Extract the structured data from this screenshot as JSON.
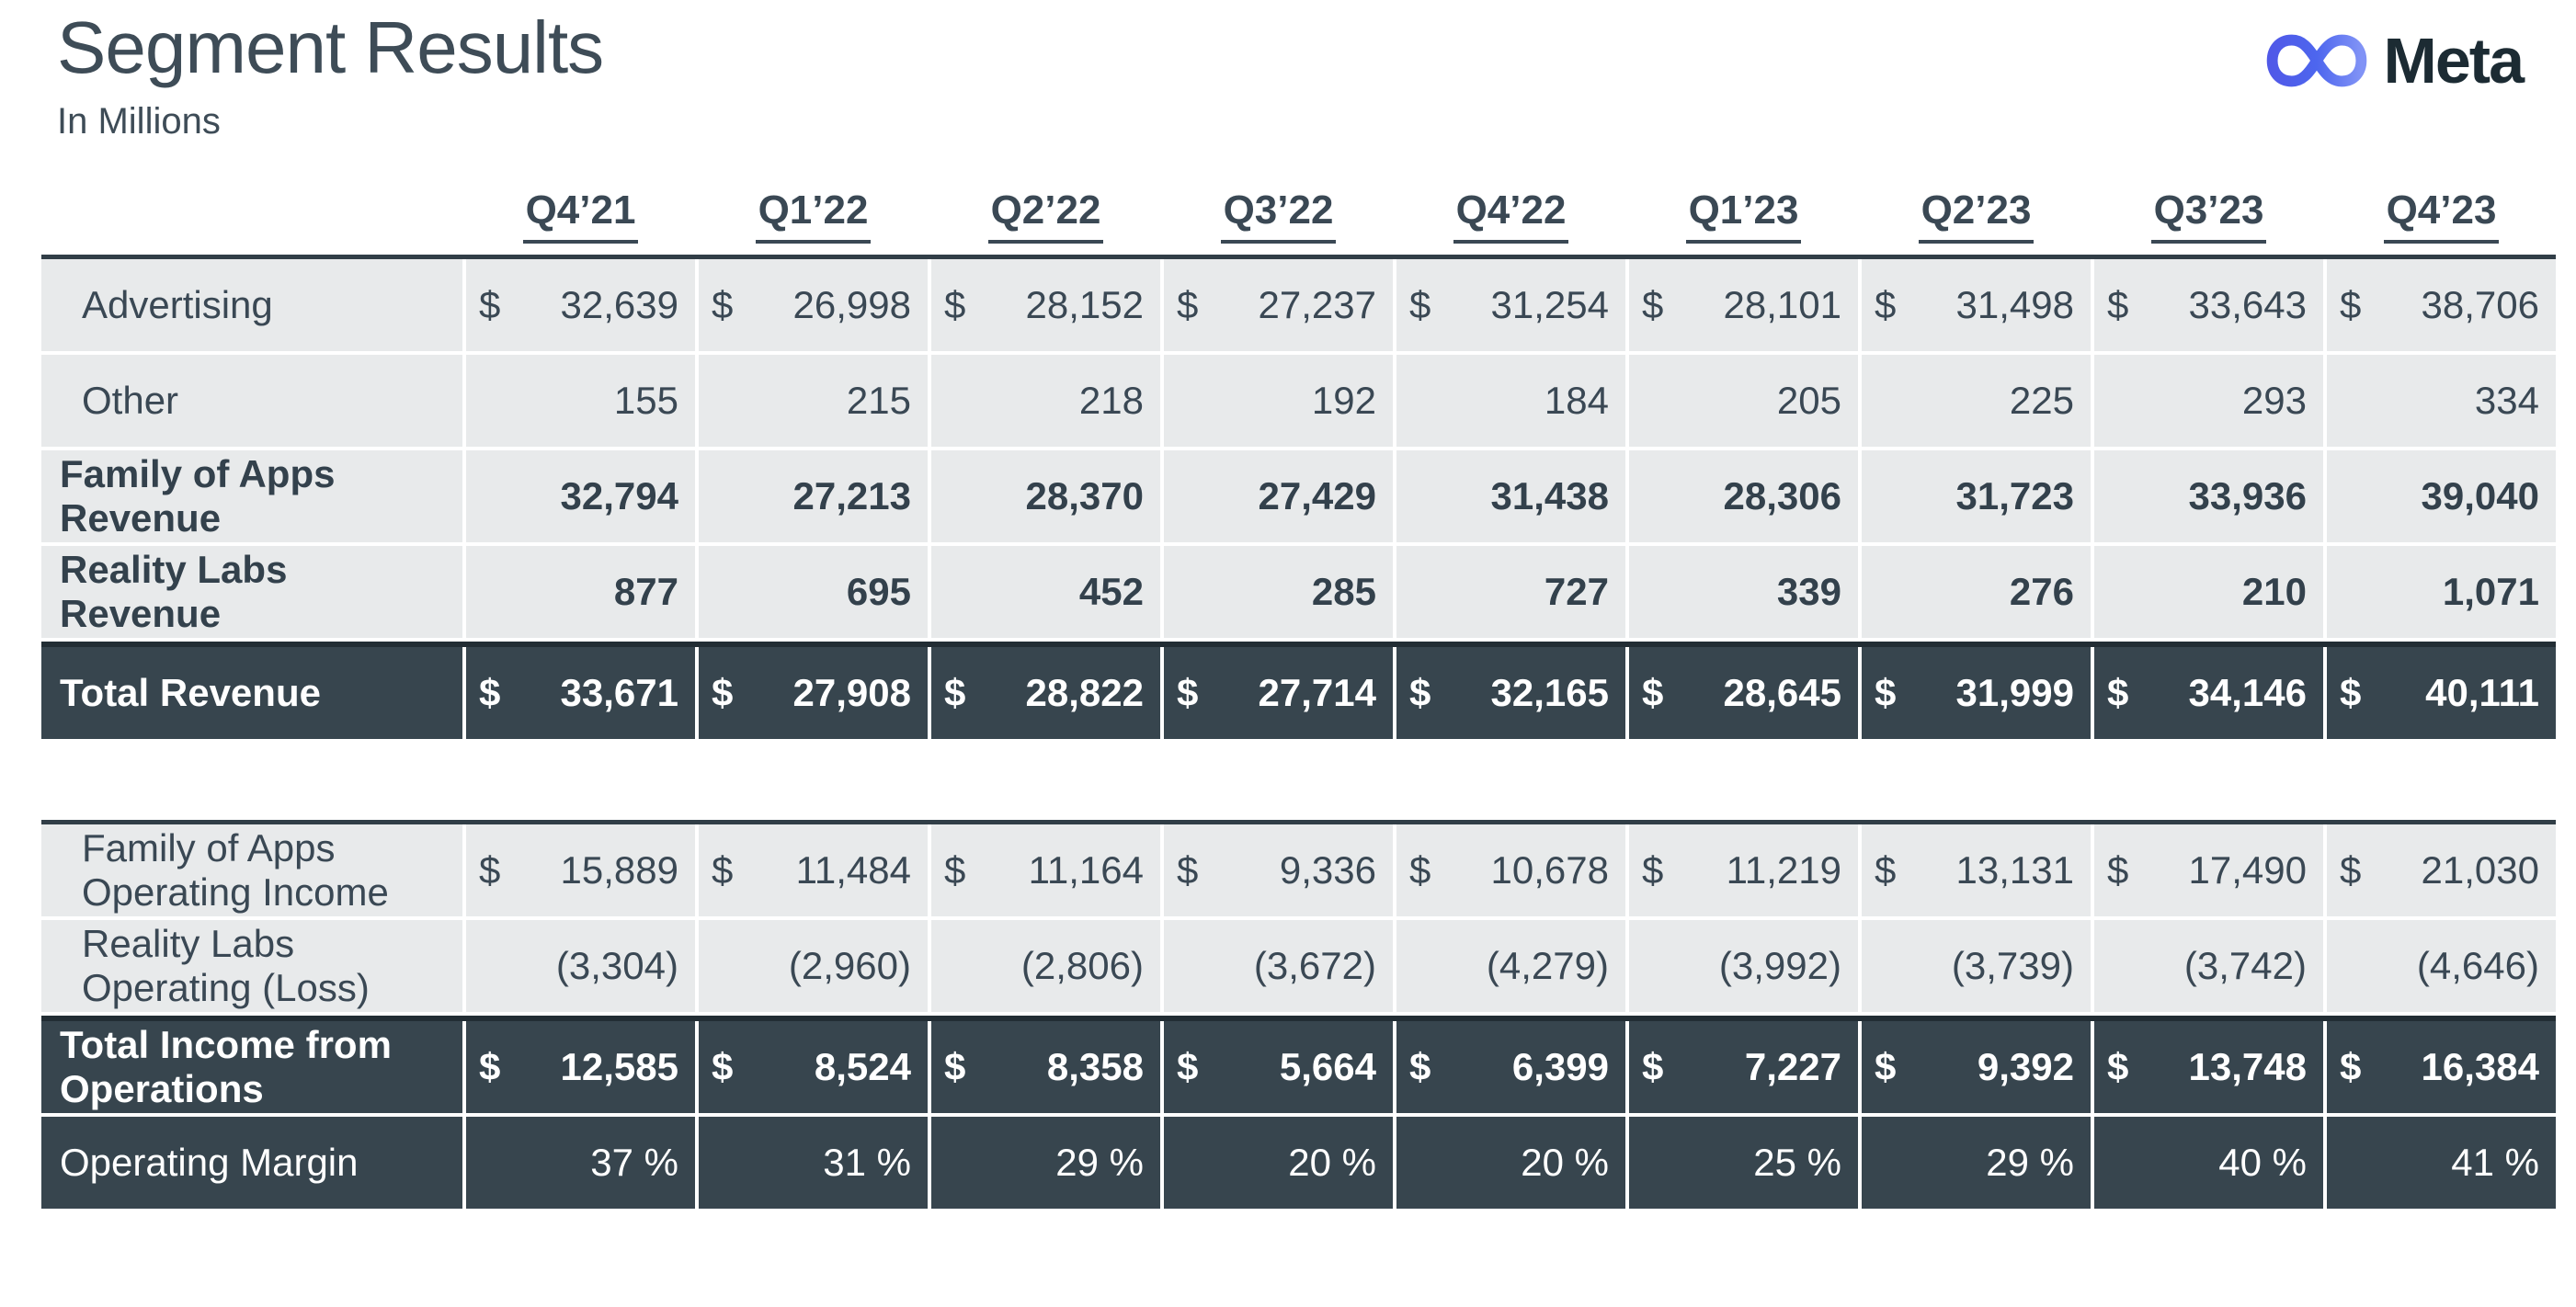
{
  "page": {
    "title": "Segment Results",
    "subtitle": "In Millions"
  },
  "logo": {
    "wordmark": "Meta"
  },
  "colors": {
    "light_row_bg": "#E8EAEB",
    "dark_row_bg": "#37454E",
    "text": "#3A4854",
    "dark_rule": "#222D34",
    "meta_gradient_start": "#5059E8",
    "meta_gradient_end": "#8193F6",
    "meta_wordmark": "#1C2B33"
  },
  "columns": [
    "Q4’21",
    "Q1’22",
    "Q2’22",
    "Q3’22",
    "Q4’22",
    "Q1’23",
    "Q2’23",
    "Q3’23",
    "Q4’23"
  ],
  "tables": [
    {
      "name": "revenue",
      "rows": [
        {
          "label": "Advertising",
          "variant": "light",
          "indent": true,
          "dollar": true,
          "bold": false,
          "values": [
            "32,639",
            "26,998",
            "28,152",
            "27,237",
            "31,254",
            "28,101",
            "31,498",
            "33,643",
            "38,706"
          ]
        },
        {
          "label": "Other",
          "variant": "light",
          "indent": true,
          "dollar": false,
          "bold": false,
          "values": [
            "155",
            "215",
            "218",
            "192",
            "184",
            "205",
            "225",
            "293",
            "334"
          ]
        },
        {
          "label": "Family of Apps Revenue",
          "variant": "light",
          "indent": false,
          "dollar": false,
          "bold": true,
          "values": [
            "32,794",
            "27,213",
            "28,370",
            "27,429",
            "31,438",
            "28,306",
            "31,723",
            "33,936",
            "39,040"
          ]
        },
        {
          "label": "Reality Labs Revenue",
          "variant": "light",
          "indent": false,
          "dollar": false,
          "bold": true,
          "values": [
            "877",
            "695",
            "452",
            "285",
            "727",
            "339",
            "276",
            "210",
            "1,071"
          ]
        },
        {
          "label": "Total Revenue",
          "variant": "dark",
          "indent": false,
          "dollar": true,
          "bold": true,
          "rule_above": true,
          "values": [
            "33,671",
            "27,908",
            "28,822",
            "27,714",
            "32,165",
            "28,645",
            "31,999",
            "34,146",
            "40,111"
          ]
        }
      ]
    },
    {
      "name": "operating",
      "rows": [
        {
          "label": "Family of Apps Operating Income",
          "variant": "light",
          "indent": true,
          "dollar": true,
          "bold": false,
          "values": [
            "15,889",
            "11,484",
            "11,164",
            "9,336",
            "10,678",
            "11,219",
            "13,131",
            "17,490",
            "21,030"
          ]
        },
        {
          "label": "Reality Labs Operating (Loss)",
          "variant": "light",
          "indent": true,
          "dollar": false,
          "bold": false,
          "values": [
            "(3,304)",
            "(2,960)",
            "(2,806)",
            "(3,672)",
            "(4,279)",
            "(3,992)",
            "(3,739)",
            "(3,742)",
            "(4,646)"
          ]
        },
        {
          "label": "Total Income from Operations",
          "variant": "dark",
          "indent": false,
          "dollar": true,
          "bold": true,
          "rule_above": true,
          "values": [
            "12,585",
            "8,524",
            "8,358",
            "5,664",
            "6,399",
            "7,227",
            "9,392",
            "13,748",
            "16,384"
          ]
        },
        {
          "label": "Operating Margin",
          "variant": "dark",
          "indent": false,
          "dollar": false,
          "bold": false,
          "values": [
            "37 %",
            "31 %",
            "29 %",
            "20 %",
            "20 %",
            "25 %",
            "29 %",
            "40 %",
            "41 %"
          ]
        }
      ]
    }
  ]
}
